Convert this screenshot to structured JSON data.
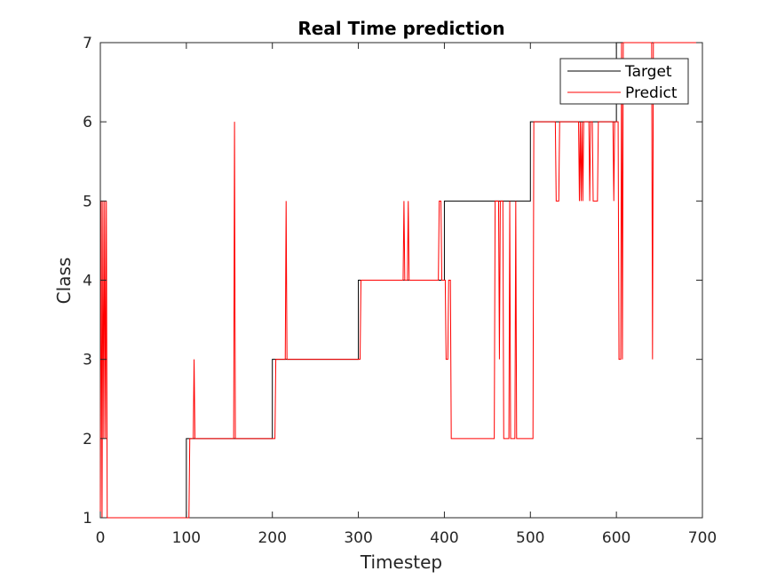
{
  "chart_data": {
    "type": "line",
    "title": "Real Time prediction",
    "xlabel": "Timestep",
    "ylabel": "Class",
    "xlim": [
      0,
      700
    ],
    "ylim": [
      1,
      7
    ],
    "xticks": [
      0,
      100,
      200,
      300,
      400,
      500,
      600,
      700
    ],
    "yticks": [
      1,
      2,
      3,
      4,
      5,
      6,
      7
    ],
    "grid": false,
    "legend_position": "top-right",
    "series": [
      {
        "name": "Target",
        "color": "#000000",
        "points": [
          [
            0,
            1
          ],
          [
            100,
            1
          ],
          [
            100,
            2
          ],
          [
            200,
            2
          ],
          [
            200,
            3
          ],
          [
            300,
            3
          ],
          [
            300,
            4
          ],
          [
            400,
            4
          ],
          [
            400,
            5
          ],
          [
            500,
            5
          ],
          [
            500,
            6
          ],
          [
            600,
            6
          ],
          [
            600,
            7
          ],
          [
            700,
            7
          ]
        ]
      },
      {
        "name": "Predict",
        "color": "#ff0000",
        "points": [
          [
            0,
            1
          ],
          [
            1,
            5
          ],
          [
            2,
            1
          ],
          [
            3,
            5
          ],
          [
            4,
            2
          ],
          [
            5,
            5
          ],
          [
            6,
            2
          ],
          [
            7,
            5
          ],
          [
            8,
            1
          ],
          [
            103,
            1
          ],
          [
            104,
            2
          ],
          [
            108,
            2
          ],
          [
            109,
            3
          ],
          [
            110,
            2
          ],
          [
            155,
            2
          ],
          [
            156,
            6
          ],
          [
            157,
            2
          ],
          [
            203,
            2
          ],
          [
            204,
            3
          ],
          [
            215,
            3
          ],
          [
            216,
            5
          ],
          [
            217,
            3
          ],
          [
            302,
            3
          ],
          [
            303,
            4
          ],
          [
            352,
            4
          ],
          [
            353,
            5
          ],
          [
            354,
            4
          ],
          [
            357,
            4
          ],
          [
            358,
            5
          ],
          [
            359,
            4
          ],
          [
            393,
            4
          ],
          [
            394,
            5
          ],
          [
            396,
            5
          ],
          [
            397,
            4
          ],
          [
            401,
            4
          ],
          [
            402,
            3
          ],
          [
            404,
            3
          ],
          [
            405,
            4
          ],
          [
            407,
            4
          ],
          [
            408,
            2
          ],
          [
            458,
            2
          ],
          [
            459,
            5
          ],
          [
            463,
            5
          ],
          [
            464,
            3
          ],
          [
            465,
            5
          ],
          [
            468,
            5
          ],
          [
            469,
            2
          ],
          [
            475,
            2
          ],
          [
            476,
            5
          ],
          [
            477,
            2
          ],
          [
            482,
            2
          ],
          [
            483,
            5
          ],
          [
            484,
            2
          ],
          [
            503,
            2
          ],
          [
            504,
            6
          ],
          [
            529,
            6
          ],
          [
            530,
            5
          ],
          [
            533,
            5
          ],
          [
            534,
            6
          ],
          [
            556,
            6
          ],
          [
            557,
            5
          ],
          [
            558,
            6
          ],
          [
            559,
            5
          ],
          [
            560,
            6
          ],
          [
            561,
            5
          ],
          [
            562,
            6
          ],
          [
            568,
            6
          ],
          [
            569,
            5
          ],
          [
            570,
            6
          ],
          [
            572,
            6
          ],
          [
            573,
            5
          ],
          [
            578,
            5
          ],
          [
            579,
            6
          ],
          [
            596,
            6
          ],
          [
            597,
            5
          ],
          [
            598,
            6
          ],
          [
            602,
            6
          ],
          [
            603,
            3
          ],
          [
            605,
            3
          ],
          [
            606,
            7
          ],
          [
            607,
            3
          ],
          [
            608,
            7
          ],
          [
            641,
            7
          ],
          [
            642,
            3
          ],
          [
            643,
            7
          ],
          [
            700,
            7
          ]
        ]
      }
    ]
  }
}
